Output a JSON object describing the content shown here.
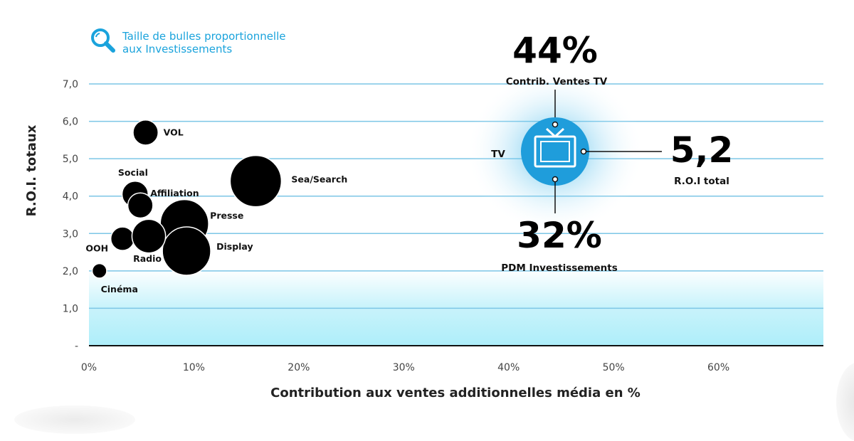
{
  "note": {
    "icon": "magnifier-icon",
    "line1": "Taille de bulles proportionnelle",
    "line2": "aux Investissements"
  },
  "chart_data": {
    "type": "scatter",
    "subtype": "bubble",
    "title": "",
    "xlabel": "Contribution aux ventes additionnelles média en %",
    "ylabel": "R.O.I. totaux",
    "xlim": [
      0,
      70
    ],
    "ylim": [
      0,
      7
    ],
    "x_ticks": [
      "0%",
      "10%",
      "20%",
      "30%",
      "40%",
      "50%",
      "60%"
    ],
    "x_tick_values": [
      0,
      10,
      20,
      30,
      40,
      50,
      60
    ],
    "y_ticks": [
      "-",
      "1,0",
      "2,0",
      "3,0",
      "4,0",
      "5,0",
      "6,0",
      "7,0"
    ],
    "y_tick_values": [
      0,
      1,
      2,
      3,
      4,
      5,
      6,
      7
    ],
    "grid": true,
    "bubble_size_meaning": "Investissements (relative)",
    "points": [
      {
        "name": "VOL",
        "x": 5.4,
        "y": 5.7,
        "size": 0.24
      },
      {
        "name": "Sea/Search",
        "x": 15.9,
        "y": 4.4,
        "size": 1.0
      },
      {
        "name": "Social",
        "x": 4.4,
        "y": 4.05,
        "size": 0.26
      },
      {
        "name": "Affiliation",
        "x": 4.9,
        "y": 3.75,
        "size": 0.24
      },
      {
        "name": "Presse",
        "x": 9.1,
        "y": 3.26,
        "size": 0.89
      },
      {
        "name": "Display",
        "x": 9.3,
        "y": 2.53,
        "size": 0.89
      },
      {
        "name": "OOH",
        "x": 3.2,
        "y": 2.86,
        "size": 0.21
      },
      {
        "name": "Radio",
        "x": 5.7,
        "y": 2.93,
        "size": 0.43
      },
      {
        "name": "Cinéma",
        "x": 1.0,
        "y": 2.0,
        "size": 0.08
      }
    ],
    "highlight": {
      "name": "TV",
      "icon": "tv-icon",
      "contrib_value": "44%",
      "contrib_label": "Contrib. Ventes TV",
      "roi_value": "5,2",
      "roi_label": "R.O.I total",
      "pdm_value": "32%",
      "pdm_label": "PDM Investissements"
    }
  },
  "colors": {
    "gridline": "#7cc6e6",
    "accent": "#1aa3dc",
    "tv_bubble": "#1f9ddb",
    "band_bottom": "#aeeefa",
    "bubble": "#000000"
  }
}
